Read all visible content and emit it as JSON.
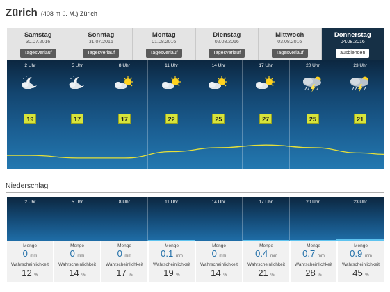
{
  "header": {
    "city": "Zürich",
    "meta": "(408 m ü. M.) Zürich"
  },
  "days": [
    {
      "name": "Samstag",
      "date": "30.07.2016",
      "button": "Tagesverlauf"
    },
    {
      "name": "Sonntag",
      "date": "31.07.2016",
      "button": "Tagesverlauf"
    },
    {
      "name": "Montag",
      "date": "01.08.2016",
      "button": "Tagesverlauf"
    },
    {
      "name": "Dienstag",
      "date": "02.08.2016",
      "button": "Tagesverlauf"
    },
    {
      "name": "Mittwoch",
      "date": "03.08.2016",
      "button": "Tagesverlauf"
    },
    {
      "name": "Donnerstag",
      "date": "04.08.2016",
      "button": "ausblenden"
    }
  ],
  "hours": [
    {
      "time": "2 Uhr",
      "icon": "moon-cloud-icon",
      "temp": "19"
    },
    {
      "time": "5 Uhr",
      "icon": "moon-cloud-icon",
      "temp": "17"
    },
    {
      "time": "8 Uhr",
      "icon": "sun-cloud-icon",
      "temp": "17"
    },
    {
      "time": "11 Uhr",
      "icon": "sun-cloud-icon",
      "temp": "22"
    },
    {
      "time": "14 Uhr",
      "icon": "sun-cloud-icon",
      "temp": "25"
    },
    {
      "time": "17 Uhr",
      "icon": "sun-cloud-icon",
      "temp": "27"
    },
    {
      "time": "20 Uhr",
      "icon": "thunderstorm-icon",
      "temp": "25"
    },
    {
      "time": "23 Uhr",
      "icon": "thunderstorm-icon",
      "temp": "21"
    }
  ],
  "precipitation": {
    "title": "Niederschlag",
    "amount_label": "Menge",
    "amount_unit": "mm",
    "prob_label": "Wahrscheinlichkeit",
    "prob_unit": "%",
    "items": [
      {
        "time": "2 Uhr",
        "amount": "0",
        "prob": "12"
      },
      {
        "time": "5 Uhr",
        "amount": "0",
        "prob": "14"
      },
      {
        "time": "8 Uhr",
        "amount": "0",
        "prob": "17"
      },
      {
        "time": "11 Uhr",
        "amount": "0.1",
        "prob": "19"
      },
      {
        "time": "14 Uhr",
        "amount": "0",
        "prob": "14"
      },
      {
        "time": "17 Uhr",
        "amount": "0.4",
        "prob": "21"
      },
      {
        "time": "20 Uhr",
        "amount": "0.7",
        "prob": "28"
      },
      {
        "time": "23 Uhr",
        "amount": "0.9",
        "prob": "45"
      }
    ]
  },
  "colors": {
    "sky_dark": "#0c2740",
    "sky_light": "#2378b0",
    "temp_badge": "#d7e43a",
    "temp_curve": "#e6e03a",
    "precip_bar": "#5ec3ef"
  }
}
